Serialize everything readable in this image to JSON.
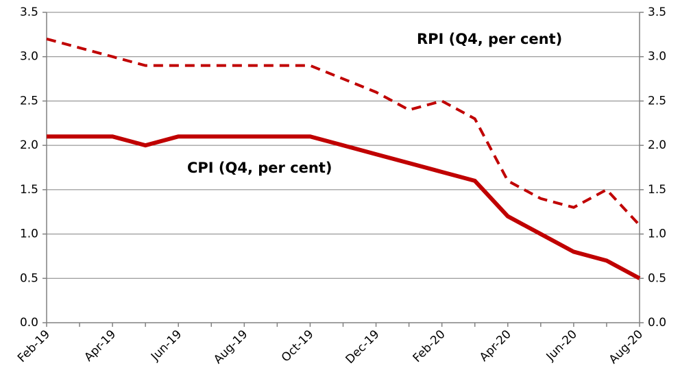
{
  "chart_data": {
    "type": "line",
    "categories": [
      "Feb-19",
      null,
      "Apr-19",
      null,
      "Jun-19",
      null,
      "Aug-19",
      null,
      "Oct-19",
      null,
      "Dec-19",
      null,
      "Feb-20",
      null,
      "Apr-20",
      null,
      "Jun-20",
      null,
      "Aug-20"
    ],
    "series": [
      {
        "name": "CPI (Q4, per cent)",
        "color": "#c00000",
        "dash": false,
        "values": [
          2.1,
          2.1,
          2.1,
          2.0,
          2.1,
          2.1,
          2.1,
          2.1,
          2.1,
          2.0,
          1.9,
          1.8,
          1.7,
          1.6,
          1.2,
          1.0,
          0.8,
          0.7,
          0.5
        ]
      },
      {
        "name": "RPI (Q4, per cent)",
        "color": "#c00000",
        "dash": true,
        "values": [
          3.2,
          3.1,
          3.0,
          2.9,
          2.9,
          2.9,
          2.9,
          2.9,
          2.9,
          2.75,
          2.6,
          2.4,
          2.5,
          2.3,
          1.6,
          1.4,
          1.3,
          1.5,
          1.1
        ]
      }
    ],
    "ylim": [
      0,
      3.5
    ],
    "yticks": [
      {
        "value": 0,
        "label": "0.0"
      },
      0.5,
      {
        "value": 1,
        "label": "1.0"
      },
      1.5,
      {
        "value": 2,
        "label": "2.0"
      },
      2.5,
      {
        "value": 3,
        "label": "3.0"
      },
      3.5
    ],
    "y2lim": [
      0,
      3.5
    ],
    "y2ticks": [
      {
        "value": 0,
        "label": "0.0"
      },
      0.5,
      {
        "value": 1,
        "label": "1.0"
      },
      1.5,
      {
        "value": 2,
        "label": "2.0"
      },
      2.5,
      {
        "value": 3,
        "label": "3.0"
      },
      3.5
    ],
    "grid": true
  }
}
